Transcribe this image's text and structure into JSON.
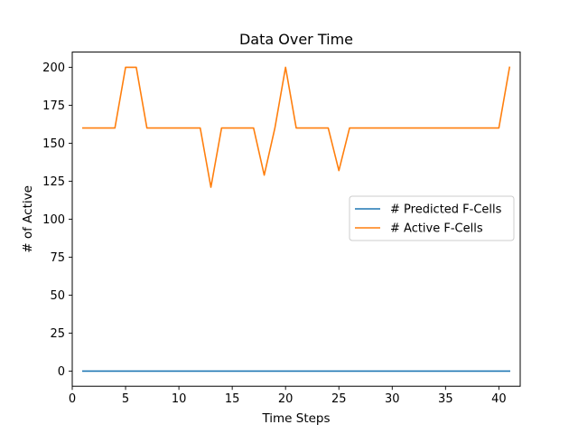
{
  "chart_data": {
    "type": "line",
    "title": "Data Over Time",
    "xlabel": "Time Steps",
    "ylabel": "# of Active",
    "xlim": [
      0.0,
      42.0
    ],
    "ylim": [
      -10.0,
      210.0
    ],
    "xticks": [
      0,
      5,
      10,
      15,
      20,
      25,
      30,
      35,
      40
    ],
    "yticks": [
      0,
      25,
      50,
      75,
      100,
      125,
      150,
      175,
      200
    ],
    "grid": false,
    "legend_position": "center-right",
    "x": [
      1,
      2,
      3,
      4,
      5,
      6,
      7,
      8,
      9,
      10,
      11,
      12,
      13,
      14,
      15,
      16,
      17,
      18,
      19,
      20,
      21,
      22,
      23,
      24,
      25,
      26,
      27,
      28,
      29,
      30,
      31,
      32,
      33,
      34,
      35,
      36,
      37,
      38,
      39,
      40,
      41
    ],
    "series": [
      {
        "name": "# Predicted F-Cells",
        "color": "#1f77b4",
        "values": [
          0,
          0,
          0,
          0,
          0,
          0,
          0,
          0,
          0,
          0,
          0,
          0,
          0,
          0,
          0,
          0,
          0,
          0,
          0,
          0,
          0,
          0,
          0,
          0,
          0,
          0,
          0,
          0,
          0,
          0,
          0,
          0,
          0,
          0,
          0,
          0,
          0,
          0,
          0,
          0,
          0
        ]
      },
      {
        "name": "# Active F-Cells",
        "color": "#ff7f0e",
        "values": [
          160,
          160,
          160,
          160,
          200,
          200,
          160,
          160,
          160,
          160,
          160,
          160,
          121,
          160,
          160,
          160,
          160,
          129,
          160,
          200,
          160,
          160,
          160,
          160,
          132,
          160,
          160,
          160,
          160,
          160,
          160,
          160,
          160,
          160,
          160,
          160,
          160,
          160,
          160,
          160,
          200
        ]
      }
    ]
  }
}
